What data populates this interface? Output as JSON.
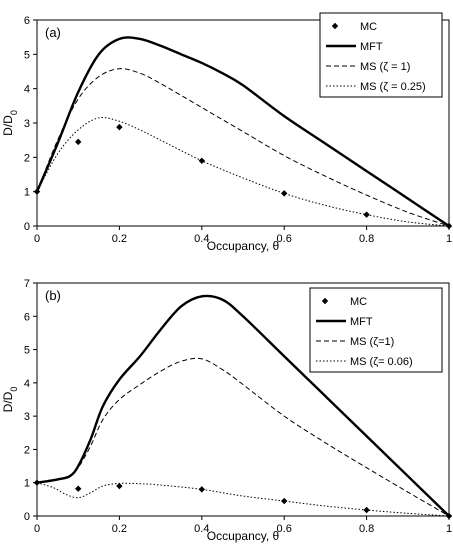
{
  "chart_data": [
    {
      "type": "line",
      "panel_label": "(a)",
      "xlabel": "Occupancy, θ",
      "ylabel": "D/D",
      "ylabel_sub": "0",
      "xlim": [
        0,
        1
      ],
      "ylim": [
        0,
        6
      ],
      "xticks": [
        "0",
        "0.2",
        "0.4",
        "0.6",
        "0.8",
        "1"
      ],
      "yticks": [
        "0",
        "1",
        "2",
        "3",
        "4",
        "5",
        "6"
      ],
      "legend_position": "top-right",
      "series": [
        {
          "name": "MC",
          "style": "markers",
          "x": [
            0,
            0.1,
            0.2,
            0.4,
            0.6,
            0.8,
            1.0
          ],
          "y": [
            1.0,
            2.45,
            2.88,
            1.9,
            0.95,
            0.33,
            0.0
          ]
        },
        {
          "name": "MFT",
          "style": "thick",
          "x": [
            0,
            0.05,
            0.1,
            0.15,
            0.2,
            0.25,
            0.3,
            0.35,
            0.4,
            0.45,
            0.5,
            0.6,
            0.7,
            0.8,
            0.9,
            1.0
          ],
          "y": [
            1.0,
            2.4,
            3.9,
            5.0,
            5.45,
            5.45,
            5.25,
            5.0,
            4.75,
            4.45,
            4.1,
            3.2,
            2.4,
            1.6,
            0.8,
            0.0
          ]
        },
        {
          "name": "MS (ζ = 1)",
          "style": "dashed",
          "x": [
            0,
            0.05,
            0.1,
            0.15,
            0.2,
            0.25,
            0.3,
            0.4,
            0.5,
            0.6,
            0.7,
            0.8,
            0.9,
            1.0
          ],
          "y": [
            1.0,
            2.5,
            3.7,
            4.35,
            4.58,
            4.45,
            4.15,
            3.45,
            2.75,
            2.05,
            1.45,
            0.9,
            0.4,
            0.0
          ]
        },
        {
          "name": "MS (ζ = 0.25)",
          "style": "dotted",
          "x": [
            0,
            0.05,
            0.1,
            0.15,
            0.2,
            0.25,
            0.3,
            0.4,
            0.5,
            0.6,
            0.7,
            0.8,
            0.9,
            1.0
          ],
          "y": [
            1.0,
            2.1,
            2.8,
            3.15,
            3.05,
            2.8,
            2.5,
            1.9,
            1.4,
            0.95,
            0.6,
            0.33,
            0.12,
            0.0
          ]
        }
      ]
    },
    {
      "type": "line",
      "panel_label": "(b)",
      "xlabel": "Occupancy, θ",
      "ylabel": "D/D",
      "ylabel_sub": "0",
      "xlim": [
        0,
        1
      ],
      "ylim": [
        0,
        7
      ],
      "xticks": [
        "0",
        "0.2",
        "0.4",
        "0.6",
        "0.8",
        "1"
      ],
      "yticks": [
        "0",
        "1",
        "2",
        "3",
        "4",
        "5",
        "6",
        "7"
      ],
      "legend_position": "top-right",
      "series": [
        {
          "name": "MC",
          "style": "markers",
          "x": [
            0,
            0.1,
            0.2,
            0.4,
            0.6,
            0.8,
            1.0
          ],
          "y": [
            1.0,
            0.82,
            0.9,
            0.8,
            0.45,
            0.18,
            0.0
          ]
        },
        {
          "name": "MFT",
          "style": "thick",
          "x": [
            0,
            0.05,
            0.08,
            0.1,
            0.13,
            0.16,
            0.2,
            0.25,
            0.3,
            0.35,
            0.4,
            0.45,
            0.5,
            0.6,
            0.7,
            0.8,
            0.9,
            1.0
          ],
          "y": [
            1.0,
            1.1,
            1.2,
            1.5,
            2.3,
            3.3,
            4.1,
            4.8,
            5.6,
            6.3,
            6.6,
            6.5,
            6.0,
            4.8,
            3.6,
            2.4,
            1.2,
            0.0
          ]
        },
        {
          "name": "MS (ζ=1)",
          "style": "dashed",
          "x": [
            0,
            0.05,
            0.08,
            0.1,
            0.13,
            0.16,
            0.2,
            0.25,
            0.3,
            0.35,
            0.4,
            0.45,
            0.5,
            0.6,
            0.7,
            0.8,
            0.9,
            1.0
          ],
          "y": [
            1.0,
            1.08,
            1.2,
            1.45,
            2.1,
            2.9,
            3.5,
            3.95,
            4.35,
            4.65,
            4.72,
            4.4,
            3.95,
            3.0,
            2.2,
            1.45,
            0.72,
            0.0
          ]
        },
        {
          "name": "MS (ζ= 0.06)",
          "style": "dotted",
          "x": [
            0,
            0.04,
            0.07,
            0.1,
            0.13,
            0.16,
            0.2,
            0.25,
            0.3,
            0.4,
            0.5,
            0.6,
            0.7,
            0.8,
            0.9,
            1.0
          ],
          "y": [
            1.0,
            0.85,
            0.65,
            0.55,
            0.7,
            0.9,
            0.98,
            0.97,
            0.93,
            0.8,
            0.6,
            0.45,
            0.3,
            0.18,
            0.08,
            0.0
          ]
        }
      ]
    }
  ]
}
